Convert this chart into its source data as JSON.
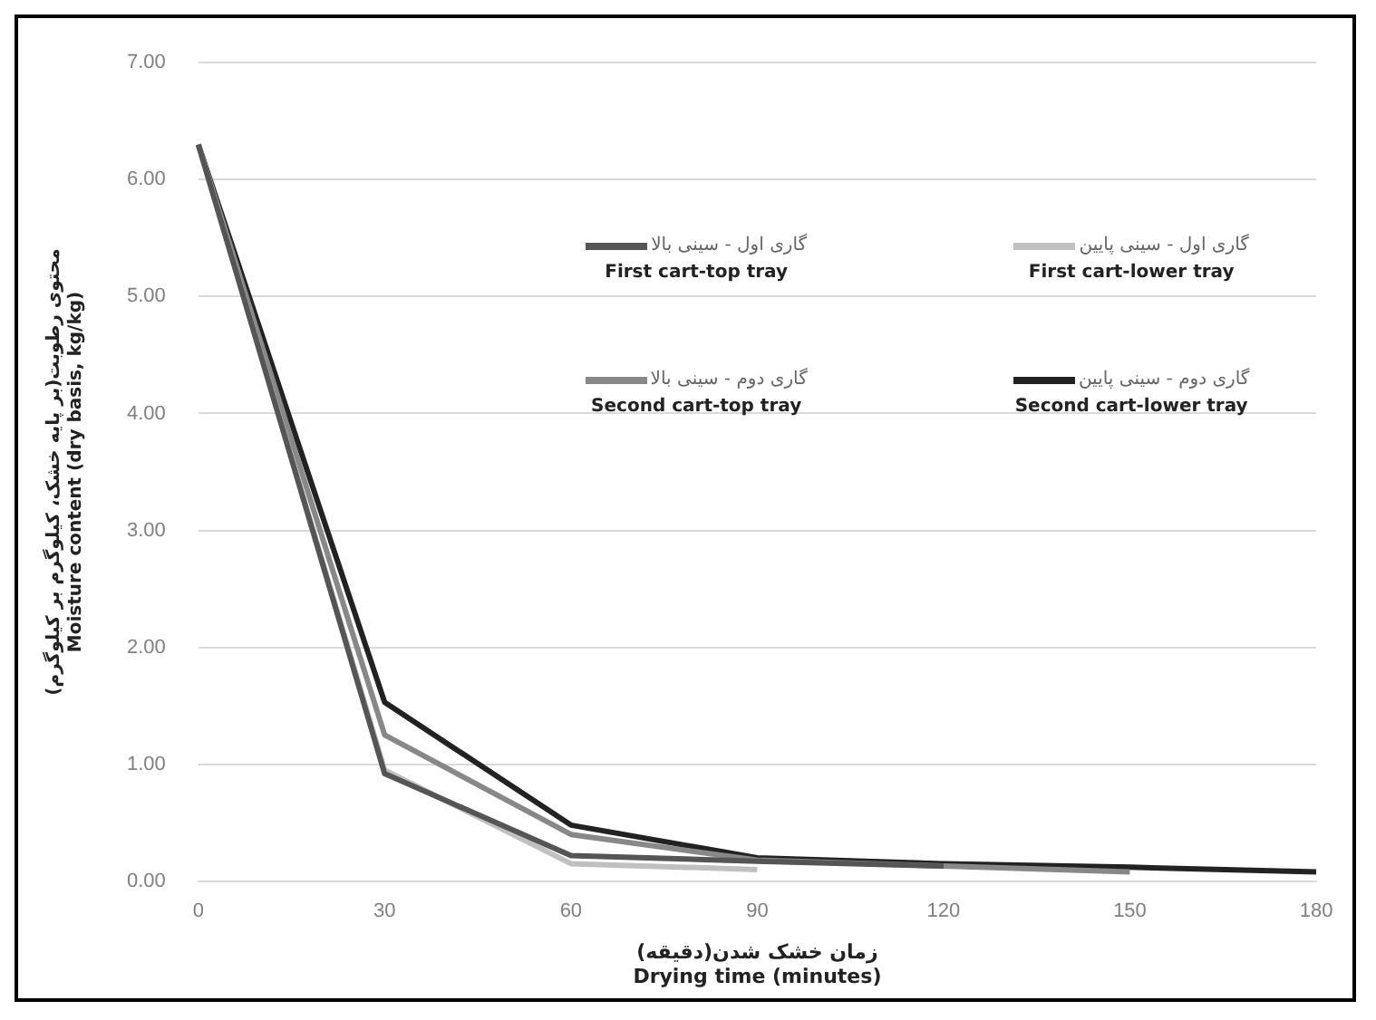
{
  "chart_data": {
    "type": "line",
    "xlabel": "زمان خشک شدن(دقیقه)\nDrying time (minutes)",
    "ylabel": "محتوی رطوبت(بر پایه خشک، کیلوگرم بر کیلوگرم)\nMoisture content (dry basis, kg/kg)",
    "categories": [
      "0",
      "30",
      "60",
      "90",
      "120",
      "150",
      "180"
    ],
    "series": [
      {
        "name": "گاری اول - سینی بالا\nFirst cart-top tray",
        "color": "#555555",
        "values": [
          6.3,
          0.92,
          0.22,
          0.17,
          0.13,
          null,
          null
        ]
      },
      {
        "name": "گاری اول - سینی پایین\nFirst cart-lower tray",
        "color": "#c0c0c0",
        "values": [
          6.3,
          0.95,
          0.15,
          0.1,
          null,
          null,
          null
        ]
      },
      {
        "name": "گاری دوم - سینی بالا\nSecond cart-top tray",
        "color": "#888888",
        "values": [
          6.3,
          1.25,
          0.4,
          0.18,
          0.13,
          0.08,
          null
        ]
      },
      {
        "name": "گاری دوم - سینی پایین\nSecond cart-lower tray",
        "color": "#222222",
        "values": [
          6.3,
          1.53,
          0.48,
          0.2,
          0.15,
          0.12,
          0.08
        ]
      }
    ],
    "ylim": [
      0,
      7
    ],
    "yticks": [
      {
        "value": 0,
        "label": "0.00"
      },
      {
        "value": 1,
        "label": "1.00"
      },
      {
        "value": 2,
        "label": "2.00"
      },
      {
        "value": 3,
        "label": "3.00"
      },
      {
        "value": 4,
        "label": "4.00"
      },
      {
        "value": 5,
        "label": "5.00"
      },
      {
        "value": 6,
        "label": "6.00"
      },
      {
        "value": 7,
        "label": "7.00"
      }
    ],
    "grid": "y",
    "legend": "top right",
    "marker": "none",
    "line_style": "solid"
  }
}
